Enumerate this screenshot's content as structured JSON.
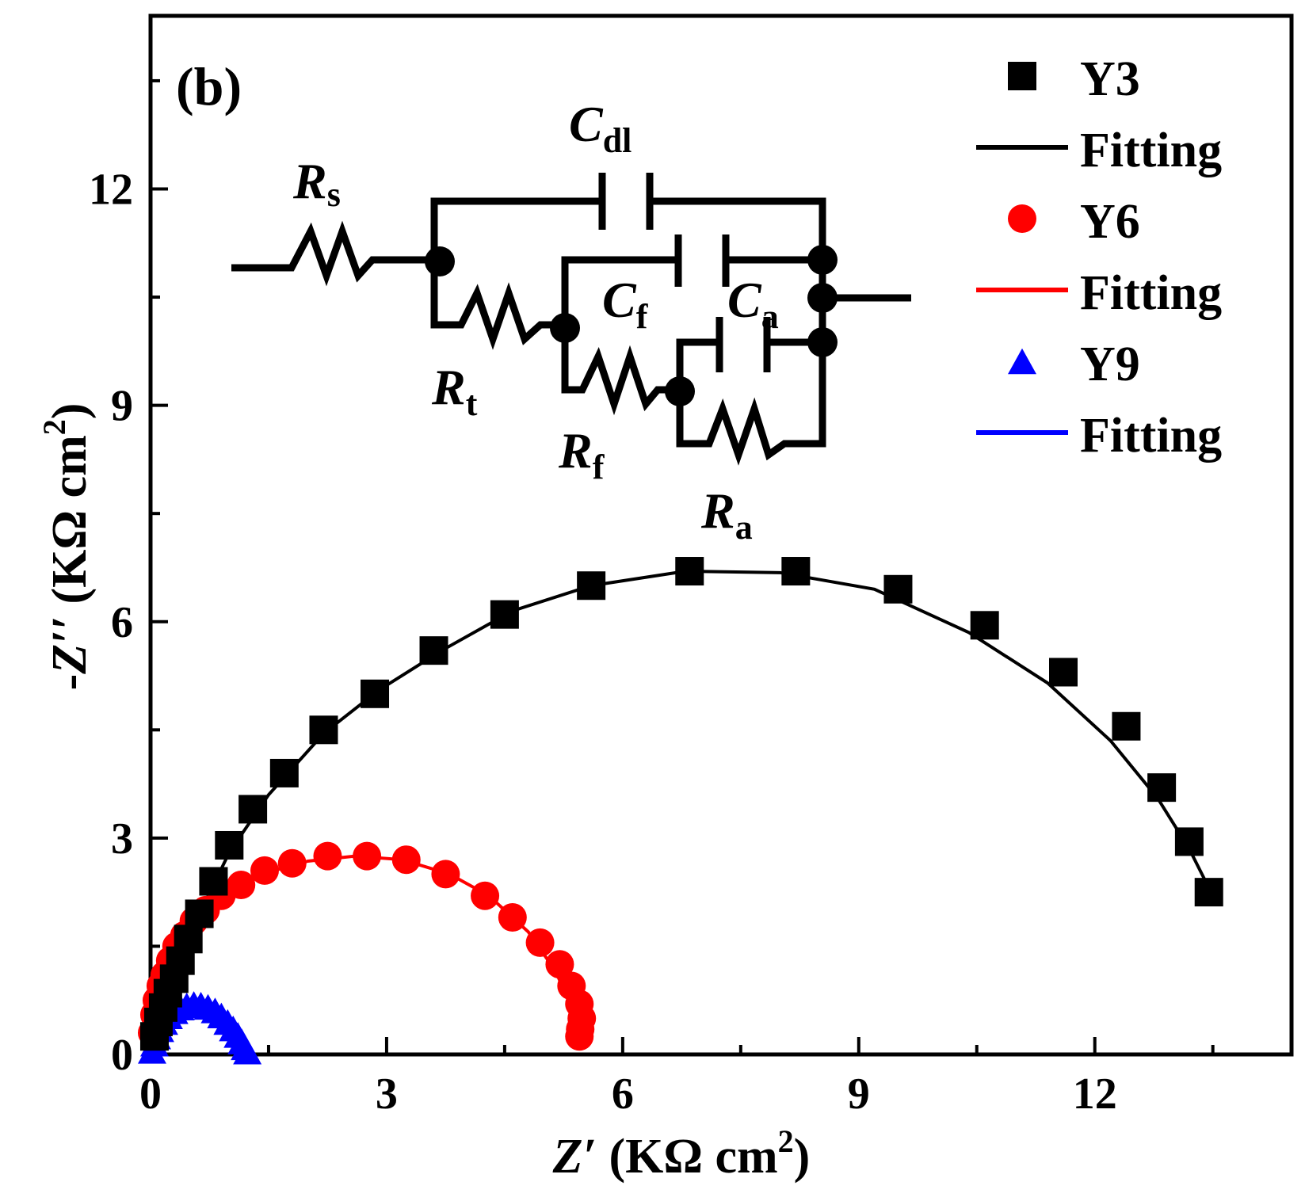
{
  "chart_data": {
    "type": "scatter",
    "panel_label": "(b)",
    "xlabel": {
      "var": "Z",
      "prime": "′",
      "unit": "(KΩ cm",
      "sup": "2",
      "close": ")"
    },
    "ylabel": {
      "prefix": "-",
      "var": "Z",
      "prime": "′′",
      "unit": "(KΩ cm",
      "sup": "2",
      "close": ")"
    },
    "xlim": [
      0,
      14.5
    ],
    "ylim": [
      0,
      14.4
    ],
    "xticks": [
      0,
      3,
      6,
      9,
      12
    ],
    "yticks": [
      0,
      3,
      6,
      9,
      12
    ],
    "xtick_labels": [
      "0",
      "3",
      "6",
      "9",
      "12"
    ],
    "ytick_labels": [
      "0",
      "3",
      "6",
      "9",
      "12"
    ],
    "legend_position": "top-right",
    "legend": [
      {
        "label": "Y3",
        "kind": "marker",
        "series": 0
      },
      {
        "label": "Fitting",
        "kind": "line",
        "series": 0
      },
      {
        "label": "Y6",
        "kind": "marker",
        "series": 1
      },
      {
        "label": "Fitting",
        "kind": "line",
        "series": 1
      },
      {
        "label": "Y9",
        "kind": "marker",
        "series": 2
      },
      {
        "label": "Fitting",
        "kind": "line",
        "series": 2
      }
    ],
    "series": [
      {
        "name": "Y3",
        "marker": "square",
        "color": "#000000",
        "x": [
          0.05,
          0.1,
          0.16,
          0.22,
          0.3,
          0.38,
          0.48,
          0.62,
          0.8,
          1.0,
          1.3,
          1.7,
          2.2,
          2.85,
          3.6,
          4.5,
          5.6,
          6.85,
          8.2,
          9.5,
          10.6,
          11.6,
          12.4,
          12.85,
          13.2,
          13.45
        ],
        "y": [
          0.25,
          0.45,
          0.65,
          0.85,
          1.05,
          1.3,
          1.6,
          1.95,
          2.4,
          2.9,
          3.4,
          3.9,
          4.5,
          5.0,
          5.6,
          6.1,
          6.5,
          6.7,
          6.7,
          6.45,
          5.95,
          5.3,
          4.55,
          3.7,
          2.95,
          2.25
        ],
        "fit_x": [
          0,
          0.3,
          0.6,
          1.0,
          1.5,
          2.2,
          2.9,
          3.7,
          4.6,
          5.6,
          6.8,
          8.0,
          9.2,
          10.4,
          11.4,
          12.2,
          12.8,
          13.2,
          13.5
        ],
        "fit_y": [
          0,
          1.1,
          1.9,
          2.8,
          3.6,
          4.45,
          5.05,
          5.6,
          6.15,
          6.5,
          6.7,
          6.68,
          6.45,
          5.85,
          5.15,
          4.35,
          3.55,
          2.85,
          2.2
        ]
      },
      {
        "name": "Y6",
        "marker": "circle",
        "color": "#ff0000",
        "x": [
          0.02,
          0.05,
          0.08,
          0.13,
          0.18,
          0.25,
          0.33,
          0.43,
          0.55,
          0.7,
          0.9,
          1.15,
          1.45,
          1.8,
          2.25,
          2.75,
          3.25,
          3.75,
          4.25,
          4.6,
          4.95,
          5.2,
          5.35,
          5.45,
          5.48,
          5.46,
          5.45
        ],
        "y": [
          0.3,
          0.55,
          0.75,
          0.95,
          1.1,
          1.3,
          1.5,
          1.65,
          1.85,
          2.0,
          2.2,
          2.35,
          2.55,
          2.65,
          2.75,
          2.75,
          2.7,
          2.5,
          2.2,
          1.9,
          1.55,
          1.25,
          0.95,
          0.7,
          0.5,
          0.35,
          0.25
        ],
        "fit_x": [
          0,
          0.2,
          0.5,
          0.9,
          1.4,
          2.0,
          2.6,
          3.2,
          3.8,
          4.3,
          4.8,
          5.15,
          5.35,
          5.45
        ],
        "fit_y": [
          0,
          1.15,
          1.8,
          2.2,
          2.5,
          2.68,
          2.75,
          2.7,
          2.5,
          2.2,
          1.7,
          1.15,
          0.65,
          0.25
        ]
      },
      {
        "name": "Y9",
        "marker": "triangle",
        "color": "#0000ff",
        "x": [
          0.02,
          0.05,
          0.08,
          0.12,
          0.17,
          0.23,
          0.3,
          0.38,
          0.46,
          0.55,
          0.64,
          0.73,
          0.82,
          0.9,
          0.98,
          1.05,
          1.11,
          1.16,
          1.2,
          1.23
        ],
        "y": [
          0.05,
          0.15,
          0.25,
          0.35,
          0.45,
          0.53,
          0.6,
          0.65,
          0.68,
          0.7,
          0.69,
          0.66,
          0.61,
          0.54,
          0.45,
          0.36,
          0.27,
          0.18,
          0.1,
          0.04
        ],
        "fit_x": [
          0,
          0.15,
          0.35,
          0.6,
          0.85,
          1.05,
          1.2,
          1.25
        ],
        "fit_y": [
          0,
          0.42,
          0.64,
          0.7,
          0.6,
          0.38,
          0.15,
          0.02
        ]
      }
    ],
    "circuit": {
      "Rs": {
        "main": "R",
        "sub": "s"
      },
      "Rt": {
        "main": "R",
        "sub": "t"
      },
      "Rf": {
        "main": "R",
        "sub": "f"
      },
      "Ra": {
        "main": "R",
        "sub": "a"
      },
      "Cdl": {
        "main": "C",
        "sub": "dl"
      },
      "Cf": {
        "main": "C",
        "sub": "f"
      },
      "Ca": {
        "main": "C",
        "sub": "a"
      }
    }
  }
}
